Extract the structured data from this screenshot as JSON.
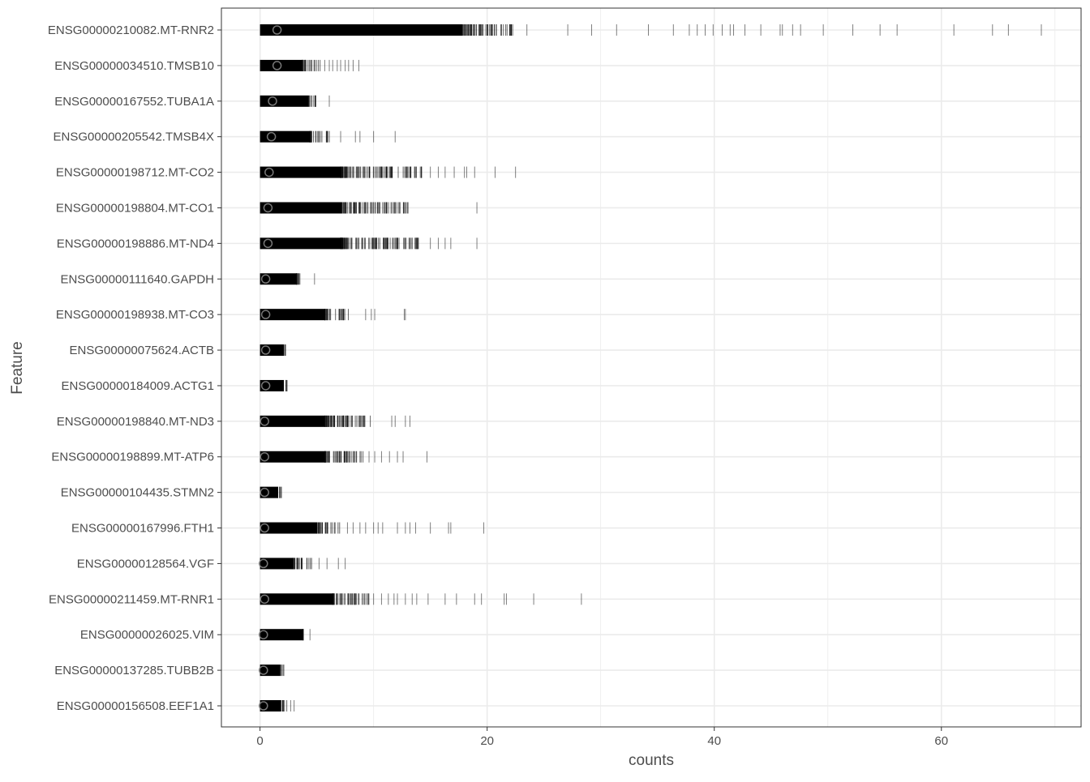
{
  "chart_data": {
    "type": "scatter",
    "title": "",
    "xlabel": "counts",
    "ylabel": "Feature",
    "xlim": [
      -3.4,
      72.3
    ],
    "x_ticks": [
      0,
      20,
      40,
      60
    ],
    "x_minor_ticks": [
      10,
      30,
      50,
      70
    ],
    "grid": true,
    "legend": "none",
    "colors": {
      "marks": "#000000",
      "mean_marker": "#777777",
      "grid": "#ebebeb",
      "border": "#333333",
      "text": "#4d4d4d"
    },
    "features": [
      {
        "name": "ENSG00000210082.MT-RNR2",
        "mean": 1.5,
        "solid_max": 17.8,
        "dense_max": 22.8,
        "ticks": [
          23.5,
          27.1,
          29.2,
          31.4,
          34.2,
          36.4,
          37.8,
          38.5,
          39.2,
          39.9,
          40.7,
          41.4,
          41.7,
          42.7,
          44.1,
          45.8,
          46.0,
          46.9,
          47.6,
          49.6,
          52.2,
          54.6,
          56.1,
          61.1,
          64.5,
          65.9,
          68.8
        ]
      },
      {
        "name": "ENSG00000034510.TMSB10",
        "mean": 1.5,
        "solid_max": 3.7,
        "dense_max": 5.3,
        "ticks": [
          5.7,
          6.1,
          6.4,
          6.8,
          7.1,
          7.5,
          7.8,
          8.2,
          8.7
        ]
      },
      {
        "name": "ENSG00000167552.TUBA1A",
        "mean": 1.1,
        "solid_max": 4.3,
        "dense_max": 5.0,
        "ticks": [
          6.1
        ]
      },
      {
        "name": "ENSG00000205542.TMSB4X",
        "mean": 1.0,
        "solid_max": 4.4,
        "dense_max": 6.2,
        "ticks": [
          7.1,
          8.4,
          8.8,
          10.0,
          11.9
        ]
      },
      {
        "name": "ENSG00000198712.MT-CO2",
        "mean": 0.8,
        "solid_max": 7.1,
        "dense_max": 14.3,
        "ticks": [
          15.0,
          15.7,
          16.3,
          17.1,
          18.0,
          18.2,
          18.9,
          20.7,
          22.5
        ]
      },
      {
        "name": "ENSG00000198804.MT-CO1",
        "mean": 0.7,
        "solid_max": 7.1,
        "dense_max": 13.1,
        "ticks": [
          19.1
        ]
      },
      {
        "name": "ENSG00000198886.MT-ND4",
        "mean": 0.7,
        "solid_max": 7.1,
        "dense_max": 14.4,
        "ticks": [
          15.0,
          15.7,
          16.3,
          16.8,
          19.1
        ]
      },
      {
        "name": "ENSG00000111640.GAPDH",
        "mean": 0.5,
        "solid_max": 3.2,
        "dense_max": 3.9,
        "ticks": [
          4.8
        ]
      },
      {
        "name": "ENSG00000198938.MT-CO3",
        "mean": 0.5,
        "solid_max": 5.7,
        "dense_max": 7.8,
        "ticks": [
          9.3,
          9.8,
          10.1,
          12.7,
          12.8
        ]
      },
      {
        "name": "ENSG00000075624.ACTB",
        "mean": 0.5,
        "solid_max": 2.1,
        "dense_max": 2.3,
        "ticks": []
      },
      {
        "name": "ENSG00000184009.ACTG1",
        "mean": 0.5,
        "solid_max": 2.1,
        "dense_max": 2.4,
        "ticks": []
      },
      {
        "name": "ENSG00000198840.MT-ND3",
        "mean": 0.4,
        "solid_max": 5.7,
        "dense_max": 10.2,
        "ticks": [
          11.6,
          11.9,
          12.8,
          13.2
        ]
      },
      {
        "name": "ENSG00000198899.MT-ATP6",
        "mean": 0.4,
        "solid_max": 5.7,
        "dense_max": 9.1,
        "ticks": [
          9.6,
          10.1,
          10.7,
          11.4,
          12.1,
          12.6,
          14.7
        ]
      },
      {
        "name": "ENSG00000104435.STMN2",
        "mean": 0.4,
        "solid_max": 1.6,
        "dense_max": 1.9,
        "ticks": []
      },
      {
        "name": "ENSG00000167996.FTH1",
        "mean": 0.4,
        "solid_max": 5.0,
        "dense_max": 7.1,
        "ticks": [
          7.7,
          8.2,
          8.8,
          9.3,
          10.0,
          10.4,
          10.8,
          12.1,
          12.8,
          13.2,
          13.7,
          15.0,
          16.6,
          16.8,
          19.7
        ]
      },
      {
        "name": "ENSG00000128564.VGF",
        "mean": 0.3,
        "solid_max": 2.9,
        "dense_max": 4.6,
        "ticks": [
          5.2,
          5.9,
          6.9,
          7.5
        ]
      },
      {
        "name": "ENSG00000211459.MT-RNR1",
        "mean": 0.4,
        "solid_max": 6.4,
        "dense_max": 9.6,
        "ticks": [
          10.0,
          10.7,
          11.3,
          11.8,
          12.1,
          12.8,
          13.4,
          13.8,
          14.8,
          16.3,
          17.3,
          18.9,
          19.5,
          21.5,
          21.7,
          24.1,
          28.3
        ]
      },
      {
        "name": "ENSG00000026025.VIM",
        "mean": 0.3,
        "solid_max": 3.8,
        "dense_max": 4.0,
        "ticks": [
          4.4
        ]
      },
      {
        "name": "ENSG00000137285.TUBB2B",
        "mean": 0.3,
        "solid_max": 1.8,
        "dense_max": 2.1,
        "ticks": []
      },
      {
        "name": "ENSG00000156508.EEF1A1",
        "mean": 0.3,
        "solid_max": 1.8,
        "dense_max": 2.6,
        "ticks": [
          2.7,
          3.0
        ]
      }
    ]
  }
}
